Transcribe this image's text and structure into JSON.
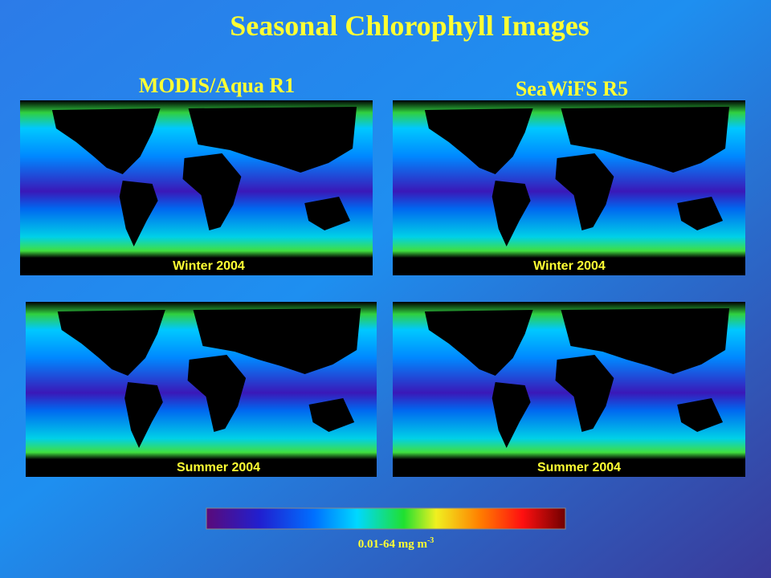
{
  "title": "Seasonal Chlorophyll Images",
  "columns": [
    "MODIS/Aqua R1",
    "SeaWiFS R5"
  ],
  "panels": [
    {
      "label": "Winter 2004"
    },
    {
      "label": "Winter 2004"
    },
    {
      "label": "Summer 2004"
    },
    {
      "label": "Summer 2004"
    }
  ],
  "colorbar": {
    "label": {
      "text": "0.01-64 mg m",
      "sup": "-3"
    }
  }
}
